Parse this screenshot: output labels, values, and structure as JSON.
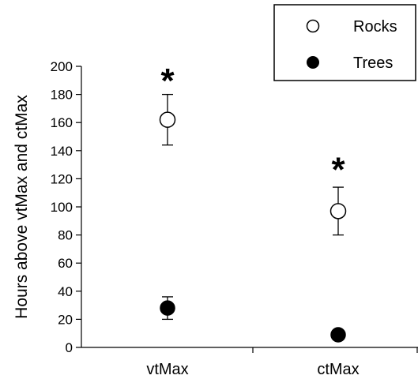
{
  "chart_data": {
    "type": "scatter",
    "ylabel": "Hours above vtMax and ctMax",
    "xlabel": "",
    "categories": [
      "vtMax",
      "ctMax"
    ],
    "ylim": [
      0,
      200
    ],
    "yticks": [
      0,
      20,
      40,
      60,
      80,
      100,
      120,
      140,
      160,
      180,
      200
    ],
    "series": [
      {
        "name": "Rocks",
        "marker": "open-circle",
        "values": [
          162,
          97
        ],
        "error": [
          18,
          17
        ]
      },
      {
        "name": "Trees",
        "marker": "filled-circle",
        "values": [
          28,
          9
        ],
        "error": [
          8,
          0
        ]
      }
    ],
    "annotations": [
      {
        "text": "*",
        "category": "vtMax",
        "y": 196
      },
      {
        "text": "*",
        "category": "ctMax",
        "y": 133
      }
    ],
    "legend_position": "top-right",
    "grid": false
  }
}
